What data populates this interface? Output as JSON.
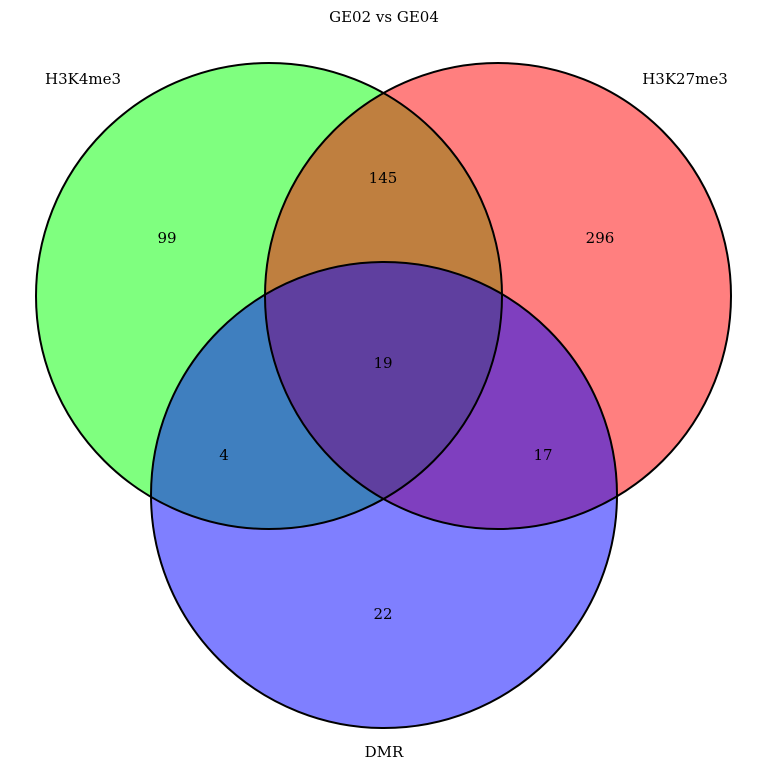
{
  "title": "GE02 vs GE04",
  "sets": [
    {
      "key": "a",
      "name": "H3K4me3",
      "color": "#00ff00"
    },
    {
      "key": "b",
      "name": "H3K27me3",
      "color": "#ff0000"
    },
    {
      "key": "c",
      "name": "DMR",
      "color": "#0000ff"
    }
  ],
  "regions": {
    "a_only": "99",
    "b_only": "296",
    "c_only": "22",
    "ab": "145",
    "ac": "4",
    "bc": "17",
    "abc": "19"
  }
}
